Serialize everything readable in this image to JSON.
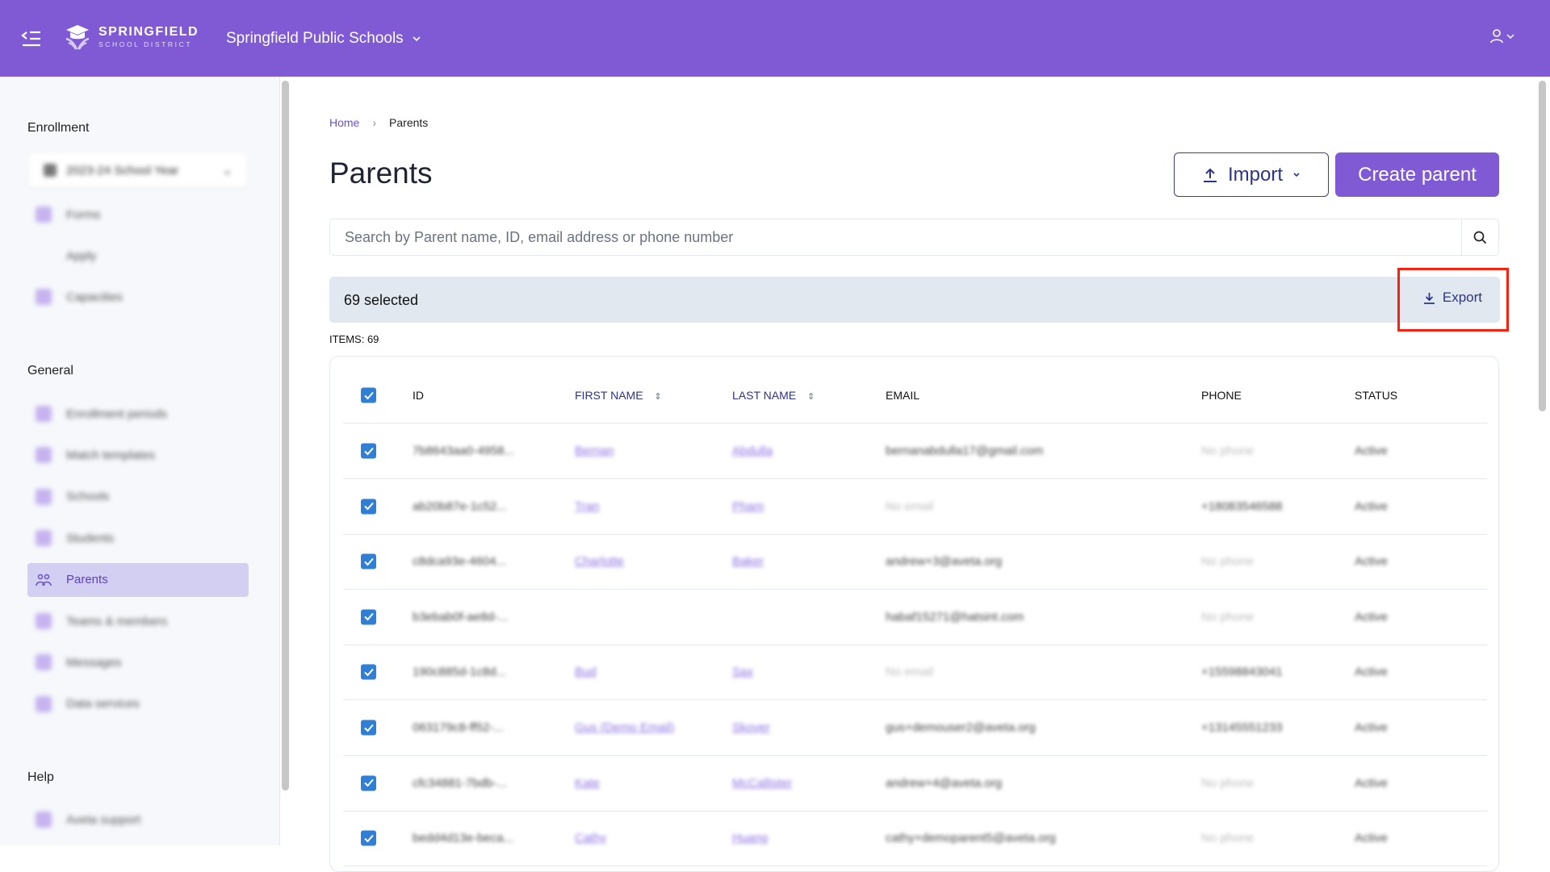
{
  "header": {
    "logo_line1": "SPRINGFIELD",
    "logo_line2": "SCHOOL DISTRICT",
    "district": "Springfield Public Schools"
  },
  "sidebar": {
    "enrollment_heading": "Enrollment",
    "school_year": "2023-24 School Year",
    "enrollment_items": [
      {
        "label": "Forms"
      },
      {
        "label": "Apply"
      },
      {
        "label": "Capacities"
      }
    ],
    "general_heading": "General",
    "general_items": [
      {
        "label": "Enrollment periods"
      },
      {
        "label": "Match templates"
      },
      {
        "label": "Schools"
      },
      {
        "label": "Students"
      },
      {
        "label": "Parents"
      },
      {
        "label": "Teams & members"
      },
      {
        "label": "Messages"
      },
      {
        "label": "Data services"
      }
    ],
    "help_heading": "Help",
    "help_items": [
      {
        "label": "Aveta support"
      }
    ]
  },
  "breadcrumb": {
    "home": "Home",
    "sep": "›",
    "current": "Parents"
  },
  "page": {
    "title": "Parents",
    "import_label": "Import",
    "create_label": "Create parent"
  },
  "search": {
    "placeholder": "Search by Parent name, ID, email address or phone number",
    "value": ""
  },
  "selection": {
    "count_text": "69 selected",
    "export_label": "Export"
  },
  "items_text": "ITEMS: 69",
  "table": {
    "columns": {
      "id": "ID",
      "first": "FIRST NAME",
      "last": "LAST NAME",
      "email": "EMAIL",
      "phone": "PHONE",
      "status": "STATUS"
    },
    "rows": [
      {
        "id": "7b8643aa0-4958...",
        "first": "Bernan",
        "last": "Abdulla",
        "email": "bernanabdulla17@gmail.com",
        "phone": "No phone",
        "status": "Active"
      },
      {
        "id": "ab20b87e-1c52...",
        "first": "Tran",
        "last": "Pham",
        "email": "No email",
        "phone": "+18083546588",
        "status": "Active"
      },
      {
        "id": "c8dca93e-4604...",
        "first": "Charlotte",
        "last": "Baker",
        "email": "andrew+3@aveta.org",
        "phone": "No phone",
        "status": "Active"
      },
      {
        "id": "b3ebab0f-ae8d-...",
        "first": "",
        "last": "",
        "email": "habaf15271@hatsint.com",
        "phone": "No phone",
        "status": "Active"
      },
      {
        "id": "190c885d-1c8d...",
        "first": "Bud",
        "last": "Sax",
        "email": "No email",
        "phone": "+15598843041",
        "status": "Active"
      },
      {
        "id": "063179c8-ff52-...",
        "first": "Gus (Demo Email)",
        "last": "Skover",
        "email": "gus+demouser2@aveta.org",
        "phone": "+13145551233",
        "status": "Active"
      },
      {
        "id": "cfc34881-7bdb-...",
        "first": "Kate",
        "last": "McCallister",
        "email": "andrew+4@aveta.org",
        "phone": "No phone",
        "status": "Active"
      },
      {
        "id": "bedd4d13e-beca...",
        "first": "Cathy",
        "last": "Huang",
        "email": "cathy+demoparent5@aveta.org",
        "phone": "No phone",
        "status": "Active"
      }
    ]
  },
  "colors": {
    "brand": "#7f5ad4",
    "highlight": "#f5220f",
    "checkbox": "#2f7fd6"
  }
}
